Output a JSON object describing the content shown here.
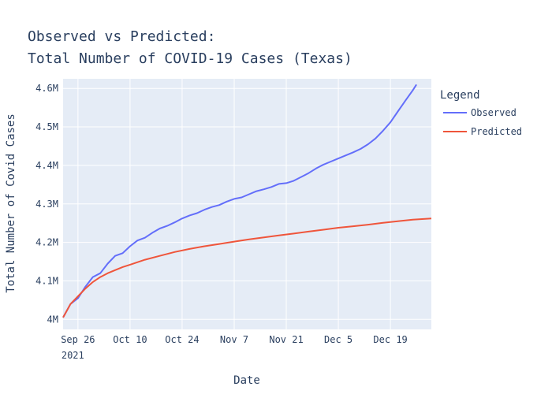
{
  "chart_data": {
    "type": "line",
    "title_line1": "Observed vs Predicted:",
    "title_line2": "Total Number of COVID-19 Cases (Texas)",
    "xlabel": "Date",
    "ylabel": "Total Number of Covid Cases",
    "x_ticks": [
      {
        "date": "2021-09-26",
        "label": "Sep 26",
        "sublabel": "2021"
      },
      {
        "date": "2021-10-10",
        "label": "Oct 10"
      },
      {
        "date": "2021-10-24",
        "label": "Oct 24"
      },
      {
        "date": "2021-11-07",
        "label": "Nov 7"
      },
      {
        "date": "2021-11-21",
        "label": "Nov 21"
      },
      {
        "date": "2021-12-05",
        "label": "Dec 5"
      },
      {
        "date": "2021-12-19",
        "label": "Dec 19"
      }
    ],
    "y_ticks": [
      {
        "value": 4000000,
        "label": "4M"
      },
      {
        "value": 4100000,
        "label": "4.1M"
      },
      {
        "value": 4200000,
        "label": "4.2M"
      },
      {
        "value": 4300000,
        "label": "4.3M"
      },
      {
        "value": 4400000,
        "label": "4.4M"
      },
      {
        "value": 4500000,
        "label": "4.5M"
      },
      {
        "value": 4600000,
        "label": "4.6M"
      }
    ],
    "xlim": [
      "2021-09-22",
      "2021-12-30"
    ],
    "ylim": [
      3974000,
      4625000
    ],
    "grid": true,
    "legend": {
      "title": "Legend",
      "placement": "right"
    },
    "colors": {
      "plot_bg": "#E5ECF6",
      "grid": "#ffffff",
      "text": "#2a3f5f"
    },
    "series": [
      {
        "name": "Observed",
        "color": "#636EFA",
        "points": [
          [
            "2021-09-22",
            4005000
          ],
          [
            "2021-09-24",
            4040000
          ],
          [
            "2021-09-26",
            4055000
          ],
          [
            "2021-09-28",
            4085000
          ],
          [
            "2021-09-30",
            4110000
          ],
          [
            "2021-10-02",
            4120000
          ],
          [
            "2021-10-04",
            4145000
          ],
          [
            "2021-10-06",
            4165000
          ],
          [
            "2021-10-08",
            4172000
          ],
          [
            "2021-10-10",
            4190000
          ],
          [
            "2021-10-12",
            4205000
          ],
          [
            "2021-10-14",
            4212000
          ],
          [
            "2021-10-16",
            4225000
          ],
          [
            "2021-10-18",
            4236000
          ],
          [
            "2021-10-20",
            4243000
          ],
          [
            "2021-10-22",
            4252000
          ],
          [
            "2021-10-24",
            4262000
          ],
          [
            "2021-10-26",
            4270000
          ],
          [
            "2021-10-28",
            4276000
          ],
          [
            "2021-10-30",
            4285000
          ],
          [
            "2021-11-01",
            4292000
          ],
          [
            "2021-11-03",
            4297000
          ],
          [
            "2021-11-05",
            4306000
          ],
          [
            "2021-11-07",
            4313000
          ],
          [
            "2021-11-09",
            4317000
          ],
          [
            "2021-11-11",
            4325000
          ],
          [
            "2021-11-13",
            4333000
          ],
          [
            "2021-11-15",
            4338000
          ],
          [
            "2021-11-17",
            4344000
          ],
          [
            "2021-11-19",
            4352000
          ],
          [
            "2021-11-21",
            4354000
          ],
          [
            "2021-11-23",
            4360000
          ],
          [
            "2021-11-25",
            4370000
          ],
          [
            "2021-11-27",
            4380000
          ],
          [
            "2021-11-29",
            4392000
          ],
          [
            "2021-12-01",
            4402000
          ],
          [
            "2021-12-03",
            4410000
          ],
          [
            "2021-12-05",
            4418000
          ],
          [
            "2021-12-07",
            4426000
          ],
          [
            "2021-12-09",
            4434000
          ],
          [
            "2021-12-11",
            4443000
          ],
          [
            "2021-12-13",
            4455000
          ],
          [
            "2021-12-15",
            4470000
          ],
          [
            "2021-12-17",
            4490000
          ],
          [
            "2021-12-19",
            4512000
          ],
          [
            "2021-12-21",
            4540000
          ],
          [
            "2021-12-23",
            4568000
          ],
          [
            "2021-12-25",
            4595000
          ],
          [
            "2021-12-26",
            4610000
          ]
        ]
      },
      {
        "name": "Predicted",
        "color": "#EF553B",
        "points": [
          [
            "2021-09-22",
            4005000
          ],
          [
            "2021-09-24",
            4040000
          ],
          [
            "2021-09-26",
            4060000
          ],
          [
            "2021-09-28",
            4080000
          ],
          [
            "2021-09-30",
            4097000
          ],
          [
            "2021-10-02",
            4110000
          ],
          [
            "2021-10-04",
            4120000
          ],
          [
            "2021-10-06",
            4128000
          ],
          [
            "2021-10-08",
            4136000
          ],
          [
            "2021-10-10",
            4142000
          ],
          [
            "2021-10-14",
            4155000
          ],
          [
            "2021-10-18",
            4165000
          ],
          [
            "2021-10-22",
            4175000
          ],
          [
            "2021-10-26",
            4183000
          ],
          [
            "2021-10-30",
            4190000
          ],
          [
            "2021-11-03",
            4196000
          ],
          [
            "2021-11-07",
            4202000
          ],
          [
            "2021-11-11",
            4208000
          ],
          [
            "2021-11-15",
            4213000
          ],
          [
            "2021-11-19",
            4218000
          ],
          [
            "2021-11-23",
            4223000
          ],
          [
            "2021-11-27",
            4228000
          ],
          [
            "2021-12-01",
            4233000
          ],
          [
            "2021-12-05",
            4238000
          ],
          [
            "2021-12-09",
            4242000
          ],
          [
            "2021-12-13",
            4246000
          ],
          [
            "2021-12-17",
            4251000
          ],
          [
            "2021-12-21",
            4255000
          ],
          [
            "2021-12-25",
            4259000
          ],
          [
            "2021-12-30",
            4262000
          ]
        ]
      }
    ]
  }
}
